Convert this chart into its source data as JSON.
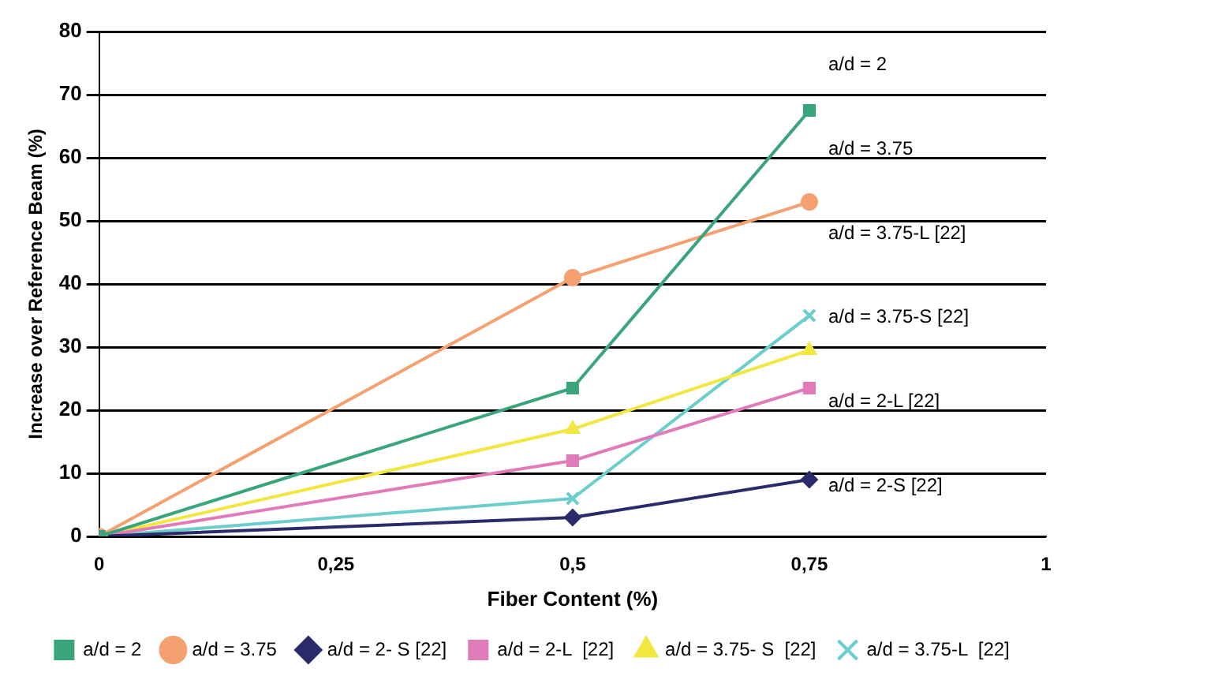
{
  "chart_data": {
    "type": "line",
    "xlabel": "Fiber Content (%)",
    "ylabel": "Increase over Reference Beam (%)",
    "xlim": [
      0,
      1
    ],
    "xticks": [
      0,
      {
        "value": 0.25,
        "label": "0,25"
      },
      {
        "value": 0.5,
        "label": "0,5"
      },
      {
        "value": 0.75,
        "label": "0,75"
      },
      1
    ],
    "ylim": [
      0,
      80
    ],
    "yticks": [
      0,
      10,
      20,
      30,
      40,
      50,
      60,
      70,
      80
    ],
    "grid": "y",
    "legend": "bottom",
    "line_style": "solid",
    "series": [
      {
        "name": "a/d = 2",
        "color": "#3aa57a",
        "marker": "square",
        "x": [
          0,
          0.5,
          0.75
        ],
        "values": [
          0,
          23.5,
          67.5
        ]
      },
      {
        "name": "a/d = 3.75",
        "color": "#f4a070",
        "marker": "circle",
        "x": [
          0,
          0.5,
          0.75
        ],
        "values": [
          0,
          41,
          53
        ]
      },
      {
        "name": "a/d = 2- S [22]",
        "color": "#2b2b6b",
        "marker": "diamond",
        "x": [
          0,
          0.5,
          0.75
        ],
        "values": [
          0,
          3,
          9
        ]
      },
      {
        "name": "a/d = 2-L  [22]",
        "color": "#e07ab8",
        "marker": "square",
        "x": [
          0,
          0.5,
          0.75
        ],
        "values": [
          0,
          12,
          23.5
        ]
      },
      {
        "name": "a/d = 3.75- S  [22]",
        "color": "#f2e640",
        "marker": "triangle",
        "x": [
          0,
          0.5,
          0.75
        ],
        "values": [
          0,
          17,
          29.5
        ]
      },
      {
        "name": "a/d = 3.75-L  [22]",
        "color": "#6ccdcd",
        "marker": "cross",
        "x": [
          0,
          0.5,
          0.75
        ],
        "values": [
          0,
          6,
          35
        ]
      }
    ],
    "annotations": [
      "a/d = 2",
      "a/d = 3.75",
      "a/d = 3.75-L [22]",
      "a/d = 3.75-S [22]",
      "a/d = 2-L [22]",
      "a/d = 2-S [22]"
    ]
  }
}
